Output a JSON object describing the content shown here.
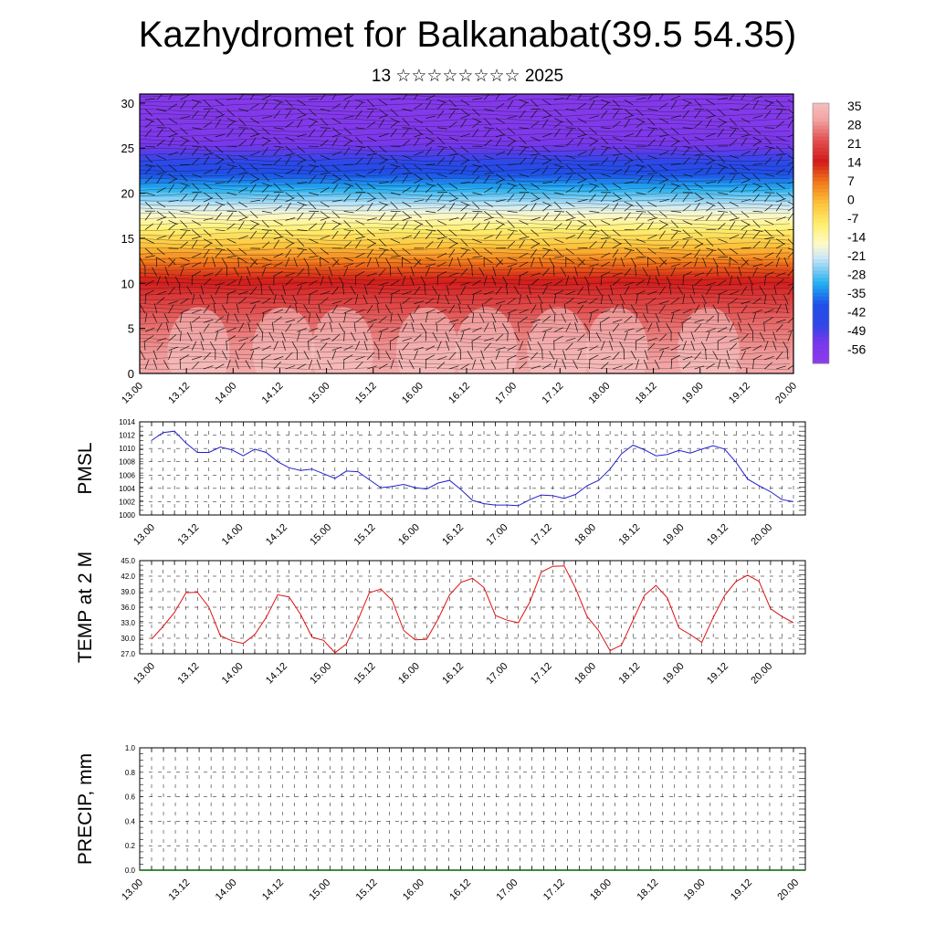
{
  "header": {
    "title": "Kazhydromet for Balkanabat(39.5 54.35)",
    "subtitle": "13 ☆☆☆☆☆☆☆☆ 2025"
  },
  "time_ticks": [
    "13.00",
    "13.12",
    "14.00",
    "14.12",
    "15.00",
    "15.12",
    "16.00",
    "16.12",
    "17.00",
    "17.12",
    "18.00",
    "18.12",
    "19.00",
    "19.12",
    "20.00"
  ],
  "chart_data": [
    {
      "type": "heatmap",
      "title": "",
      "xlabel": "",
      "ylabel": "",
      "x": [
        "13.00",
        "13.12",
        "14.00",
        "14.12",
        "15.00",
        "15.12",
        "16.00",
        "16.12",
        "17.00",
        "17.12",
        "18.00",
        "18.12",
        "19.00",
        "19.12",
        "20.00"
      ],
      "ylim": [
        0,
        31
      ],
      "y_ticks": [
        0,
        5,
        10,
        15,
        20,
        25,
        30
      ],
      "colorbar": {
        "labels": [
          "35",
          "28",
          "21",
          "14",
          "7",
          "0",
          "-7",
          "-14",
          "-21",
          "-28",
          "-35",
          "-42",
          "-49",
          "-56"
        ],
        "range": [
          -60,
          38
        ],
        "colors": {
          "warm_max": "#f5b5b5",
          "red": "#d11a1a",
          "orange": "#f27a1b",
          "yellow": "#fff070",
          "pale_blue": "#cfe8f5",
          "cyan": "#22aef0",
          "blue": "#1f4fe8",
          "violet": "#8d3bea"
        }
      },
      "vertical_profile": [
        {
          "h": 0,
          "t": 33
        },
        {
          "h": 3,
          "t": 30
        },
        {
          "h": 6,
          "t": 26
        },
        {
          "h": 8,
          "t": 22
        },
        {
          "h": 10,
          "t": 17
        },
        {
          "h": 12,
          "t": 10
        },
        {
          "h": 14,
          "t": 1
        },
        {
          "h": 16,
          "t": -8
        },
        {
          "h": 18,
          "t": -17
        },
        {
          "h": 20,
          "t": -27
        },
        {
          "h": 22,
          "t": -37
        },
        {
          "h": 24,
          "t": -47
        },
        {
          "h": 26,
          "t": -54
        },
        {
          "h": 28,
          "t": -56
        },
        {
          "h": 31,
          "t": -57
        }
      ],
      "overlay": "wind barbs"
    },
    {
      "type": "line",
      "ylabel": "PMSL",
      "ylim": [
        1000,
        1014
      ],
      "y_ticks": [
        1000,
        1002,
        1004,
        1006,
        1008,
        1010,
        1012,
        1014
      ],
      "x_ticks": [
        "13.00",
        "13.12",
        "14.00",
        "14.12",
        "15.00",
        "15.12",
        "16.00",
        "16.12",
        "17.00",
        "17.12",
        "18.00",
        "18.12",
        "19.00",
        "19.12",
        "20.00"
      ],
      "series": [
        {
          "color": "#2020d0",
          "values": [
            1011.2,
            1012.4,
            1012.6,
            1010.8,
            1009.4,
            1009.4,
            1010.2,
            1009.8,
            1008.9,
            1009.9,
            1009.4,
            1008.0,
            1007.1,
            1006.7,
            1006.9,
            1006.2,
            1005.5,
            1006.6,
            1006.5,
            1005.3,
            1004.1,
            1004.3,
            1004.6,
            1004.1,
            1003.9,
            1004.8,
            1005.2,
            1003.8,
            1002.2,
            1001.7,
            1001.5,
            1001.5,
            1001.4,
            1002.3,
            1003.0,
            1002.9,
            1002.5,
            1003.1,
            1004.4,
            1005.2,
            1006.9,
            1009.2,
            1010.5,
            1009.8,
            1008.9,
            1009.1,
            1009.7,
            1009.3,
            1009.9,
            1010.4,
            1009.9,
            1007.9,
            1005.4,
            1004.4,
            1003.5,
            1002.3,
            1002.0
          ]
        }
      ]
    },
    {
      "type": "line",
      "ylabel": "TEMP at 2 M",
      "ylim": [
        27.0,
        45.0
      ],
      "y_ticks": [
        "27.0",
        "30.0",
        "33.0",
        "36.0",
        "39.0",
        "42.0",
        "45.0"
      ],
      "x_ticks": [
        "13.00",
        "13.12",
        "14.00",
        "14.12",
        "15.00",
        "15.12",
        "16.00",
        "16.12",
        "17.00",
        "17.12",
        "18.00",
        "18.12",
        "19.00",
        "19.12",
        "20.00"
      ],
      "series": [
        {
          "color": "#e01010",
          "values": [
            29.8,
            32.3,
            35.0,
            38.8,
            38.9,
            36.0,
            30.5,
            29.5,
            29.0,
            30.7,
            34.0,
            38.4,
            38.0,
            34.6,
            30.2,
            29.6,
            27.2,
            28.9,
            33.5,
            38.8,
            39.5,
            37.3,
            31.5,
            29.7,
            29.8,
            33.7,
            38.4,
            40.8,
            41.6,
            39.8,
            34.4,
            33.5,
            33.0,
            37.0,
            42.8,
            43.9,
            44.0,
            39.6,
            34.2,
            31.5,
            27.6,
            28.7,
            33.5,
            38.3,
            40.2,
            37.8,
            32.0,
            30.7,
            29.2,
            34.0,
            38.3,
            41.0,
            42.2,
            41.0,
            35.7,
            34.2,
            33.0
          ]
        }
      ]
    },
    {
      "type": "line",
      "ylabel": "PRECIP, mm",
      "ylim": [
        0.0,
        1.0
      ],
      "y_ticks": [
        "0.0",
        "0.2",
        "0.4",
        "0.6",
        "0.8",
        "1.0"
      ],
      "x_ticks": [
        "13.00",
        "13.12",
        "14.00",
        "14.12",
        "15.00",
        "15.12",
        "16.00",
        "16.12",
        "17.00",
        "17.12",
        "18.00",
        "18.12",
        "19.00",
        "19.12",
        "20.00"
      ],
      "series": [
        {
          "color": "#006400",
          "values": [
            0,
            0,
            0,
            0,
            0,
            0,
            0,
            0,
            0,
            0,
            0,
            0,
            0,
            0,
            0,
            0,
            0,
            0,
            0,
            0,
            0,
            0,
            0,
            0,
            0,
            0,
            0,
            0,
            0,
            0,
            0,
            0,
            0,
            0,
            0,
            0,
            0,
            0,
            0,
            0,
            0,
            0,
            0,
            0,
            0,
            0,
            0,
            0,
            0,
            0,
            0,
            0,
            0,
            0,
            0,
            0,
            0
          ]
        }
      ]
    }
  ]
}
